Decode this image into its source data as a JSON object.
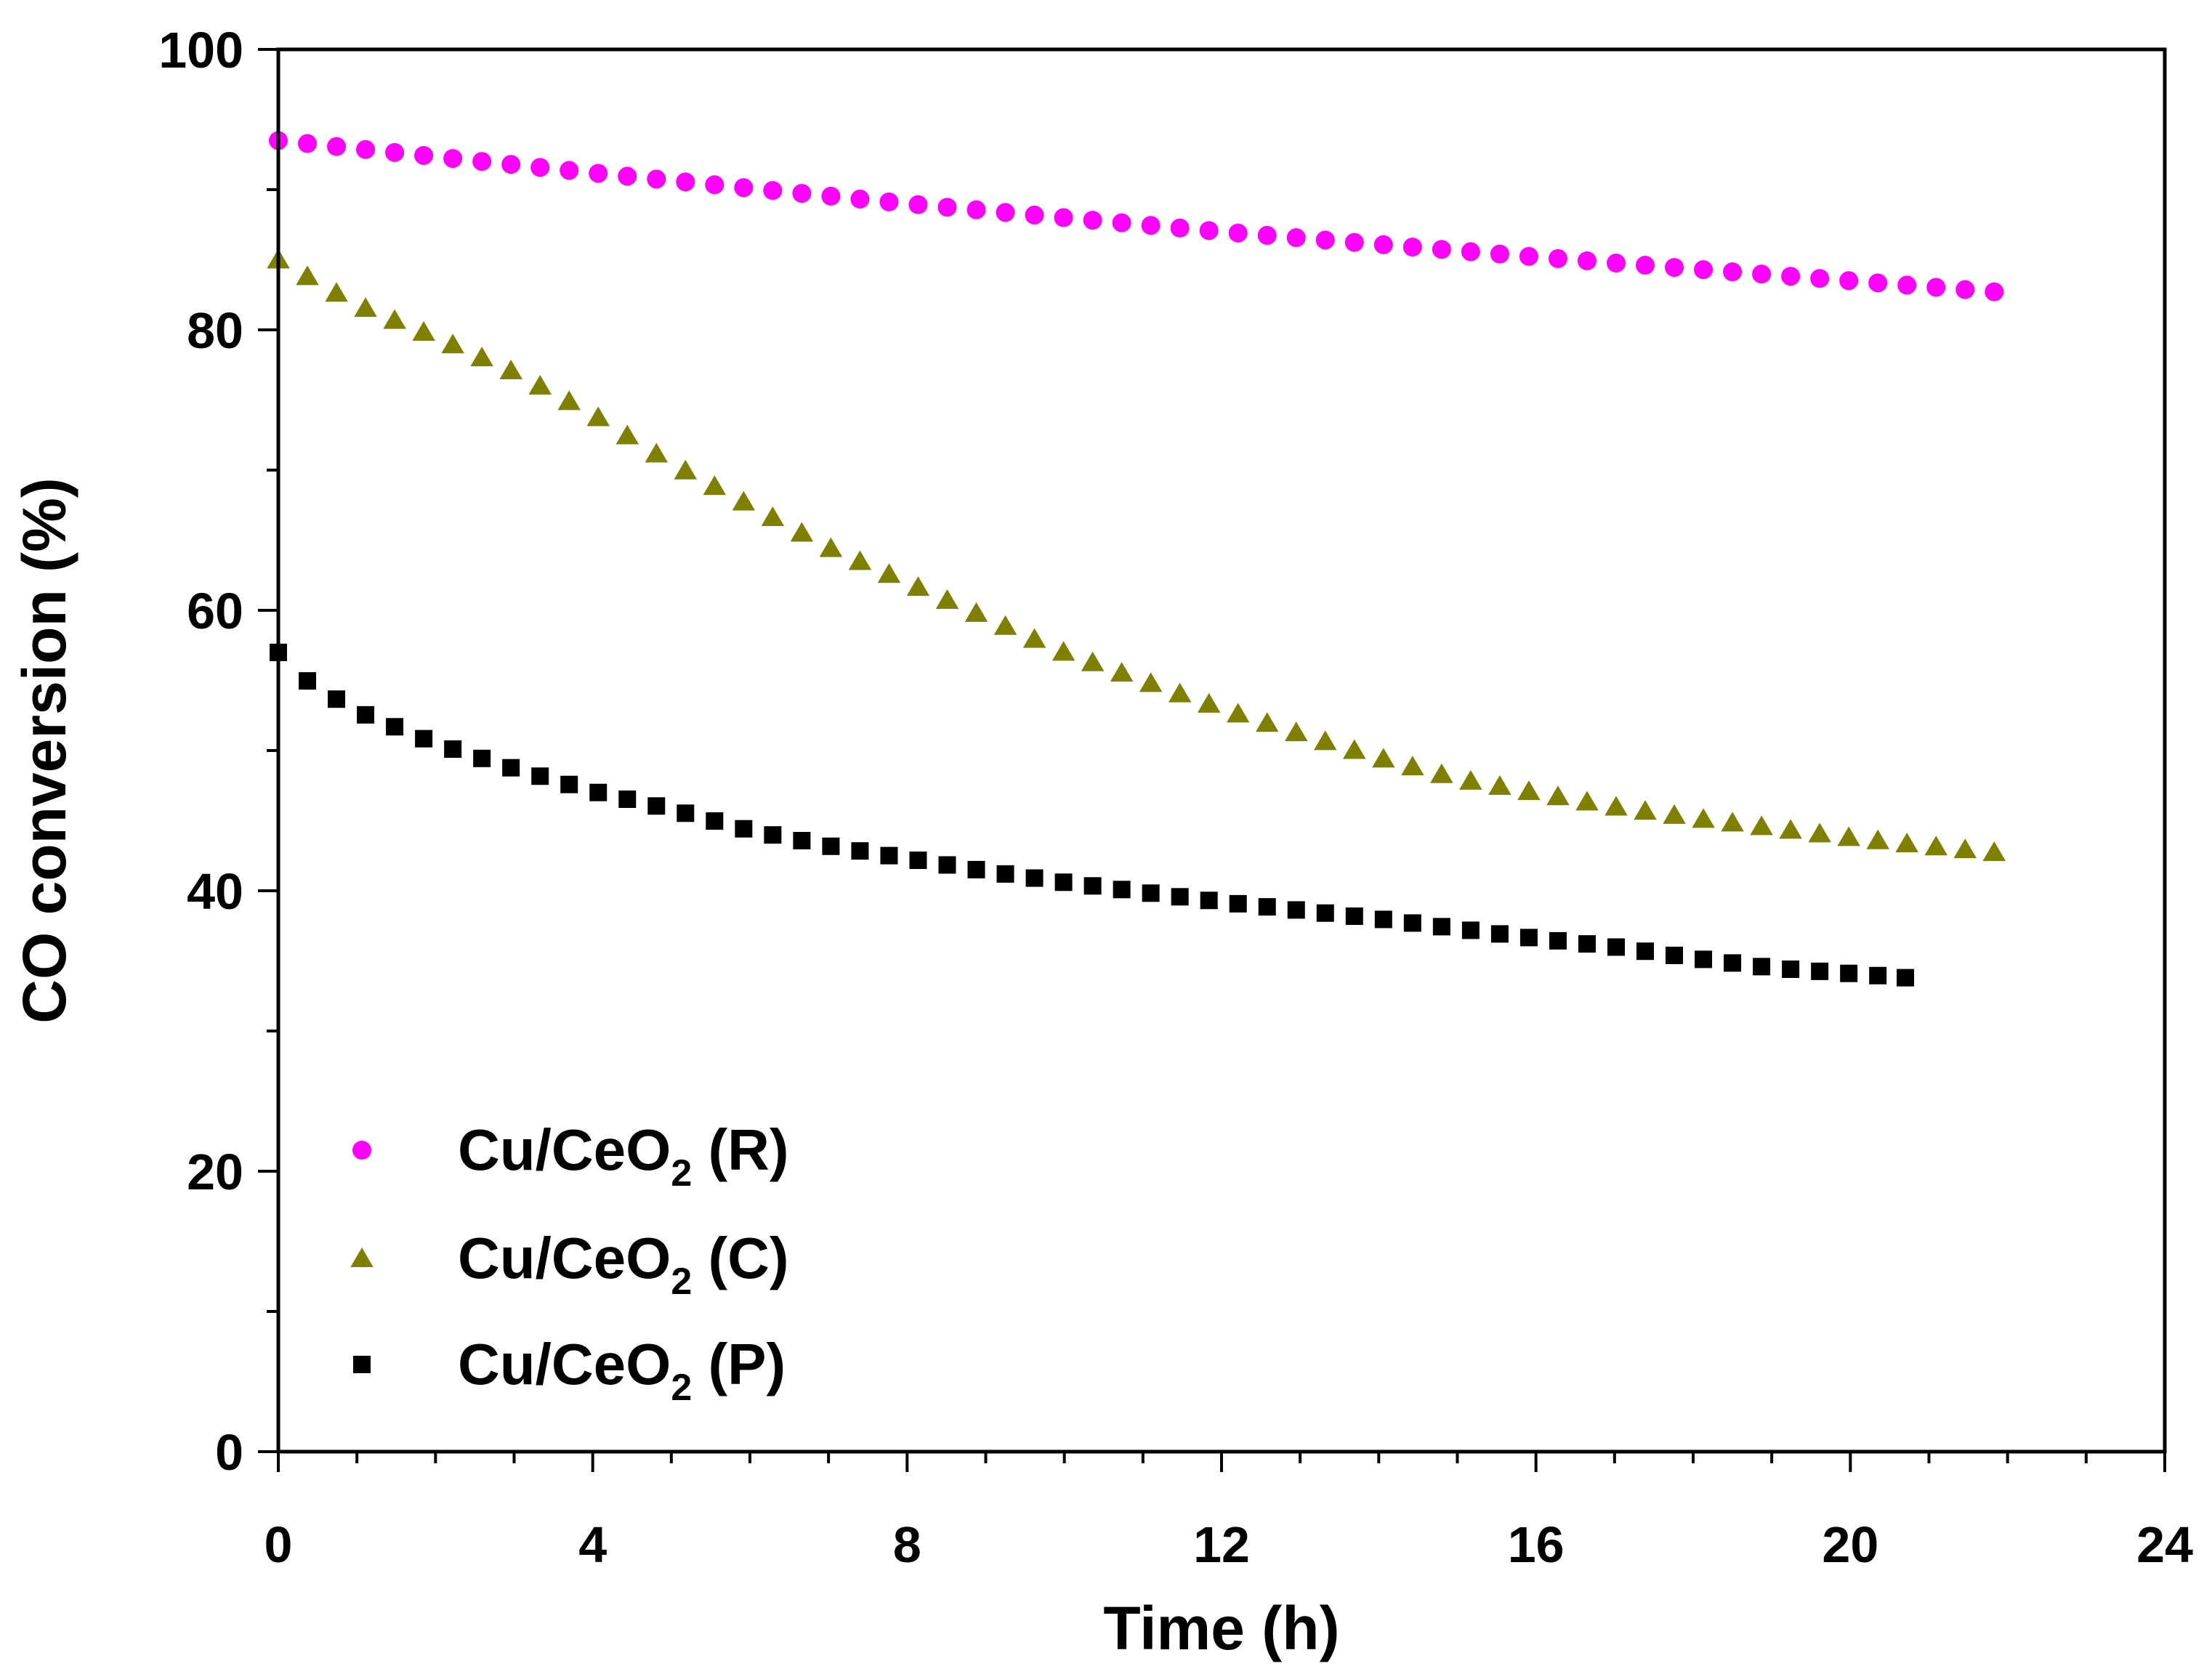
{
  "chart_data": {
    "type": "scatter",
    "title": "",
    "xlabel": "Time (h)",
    "ylabel": "CO conversion (%)",
    "xlim": [
      0,
      24
    ],
    "ylim": [
      0,
      100
    ],
    "x_ticks": [
      "0",
      "4",
      "8",
      "12",
      "16",
      "20",
      "24"
    ],
    "y_ticks": [
      "0",
      "20",
      "40",
      "60",
      "80",
      "100"
    ],
    "legend_position": "bottom-left",
    "series": [
      {
        "name": "Cu/CeO2 (R)",
        "label_main": "Cu/CeO",
        "label_sub": "2",
        "label_tail": " (R)",
        "marker": "circle",
        "color": "#ff00ff",
        "x_start": 0,
        "x_step": 0.37,
        "count": 60,
        "anchors": [
          [
            0,
            93.5
          ],
          [
            4,
            91.2
          ],
          [
            8,
            89.0
          ],
          [
            12,
            87.0
          ],
          [
            16,
            85.2
          ],
          [
            20,
            83.5
          ],
          [
            22.1,
            82.6
          ]
        ]
      },
      {
        "name": "Cu/CeO2 (C)",
        "label_main": "Cu/CeO",
        "label_sub": "2",
        "label_tail": " (C)",
        "marker": "triangle",
        "color": "#808000",
        "x_start": 0,
        "x_step": 0.37,
        "count": 60,
        "anchors": [
          [
            0,
            85
          ],
          [
            1,
            81.8
          ],
          [
            2,
            79.5
          ],
          [
            3,
            77
          ],
          [
            4,
            74
          ],
          [
            5,
            70.5
          ],
          [
            6,
            67.5
          ],
          [
            7,
            64.5
          ],
          [
            8,
            62
          ],
          [
            9,
            59.5
          ],
          [
            10,
            57
          ],
          [
            11,
            55
          ],
          [
            12,
            53
          ],
          [
            13,
            51.2
          ],
          [
            14,
            49.5
          ],
          [
            15,
            48
          ],
          [
            16,
            47
          ],
          [
            17,
            46
          ],
          [
            18,
            45.2
          ],
          [
            19,
            44.5
          ],
          [
            20,
            43.8
          ],
          [
            21,
            43.2
          ],
          [
            22.1,
            42.6
          ]
        ]
      },
      {
        "name": "Cu/CeO2 (P)",
        "label_main": "Cu/CeO",
        "label_sub": "2",
        "label_tail": " (P)",
        "marker": "square",
        "color": "#000000",
        "x_start": 0,
        "x_step": 0.37,
        "count": 57,
        "anchors": [
          [
            0,
            57
          ],
          [
            0.4,
            54.8
          ],
          [
            1,
            52.8
          ],
          [
            2,
            50.5
          ],
          [
            3,
            48.7
          ],
          [
            4,
            47.1
          ],
          [
            5,
            45.8
          ],
          [
            6,
            44.3
          ],
          [
            7,
            43.2
          ],
          [
            8,
            42.3
          ],
          [
            9,
            41.4
          ],
          [
            10,
            40.6
          ],
          [
            11,
            39.9
          ],
          [
            12,
            39.2
          ],
          [
            13,
            38.6
          ],
          [
            14,
            38
          ],
          [
            15,
            37.3
          ],
          [
            16,
            36.6
          ],
          [
            17,
            36
          ],
          [
            18,
            35.2
          ],
          [
            19,
            34.5
          ],
          [
            20,
            34.1
          ],
          [
            20.7,
            33.8
          ]
        ]
      }
    ]
  },
  "colors": {
    "axis": "#000000",
    "background": "#ffffff"
  }
}
